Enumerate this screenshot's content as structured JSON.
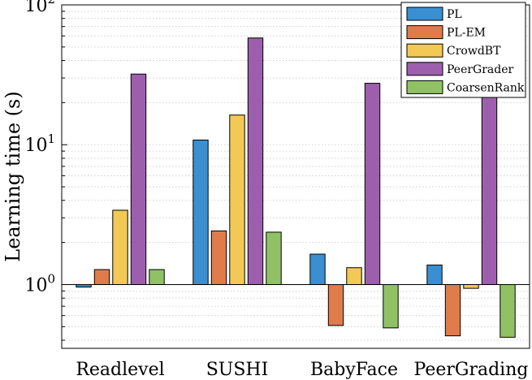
{
  "chart_data": {
    "type": "bar",
    "ylabel": "Learning time (s)",
    "xlabel": "",
    "title": "",
    "yscale": "log",
    "ylim": [
      0.35,
      100
    ],
    "baseline": 1,
    "yticks": [
      {
        "value": 1,
        "base": "10",
        "exp": "0"
      },
      {
        "value": 10,
        "base": "10",
        "exp": "1"
      },
      {
        "value": 100,
        "base": "10",
        "exp": "2"
      }
    ],
    "grid": "horizontal dotted (major and minor)",
    "legend_position": "top-right",
    "categories": [
      "Readlevel",
      "SUSHI",
      "BabyFace",
      "PeerGrading"
    ],
    "series": [
      {
        "name": "PL",
        "color": "#3a8fd0",
        "values": [
          0.96,
          10.8,
          1.65,
          1.38
        ]
      },
      {
        "name": "PL-EM",
        "color": "#e07b4c",
        "values": [
          1.28,
          2.42,
          0.51,
          0.43
        ]
      },
      {
        "name": "CrowdBT",
        "color": "#f3c955",
        "values": [
          3.4,
          16.3,
          1.32,
          0.94
        ]
      },
      {
        "name": "PeerGrader",
        "color": "#9d5fad",
        "values": [
          32,
          58,
          27.5,
          24
        ]
      },
      {
        "name": "CoarsenRank",
        "color": "#90c265",
        "values": [
          1.28,
          2.37,
          0.49,
          0.42
        ]
      }
    ]
  }
}
